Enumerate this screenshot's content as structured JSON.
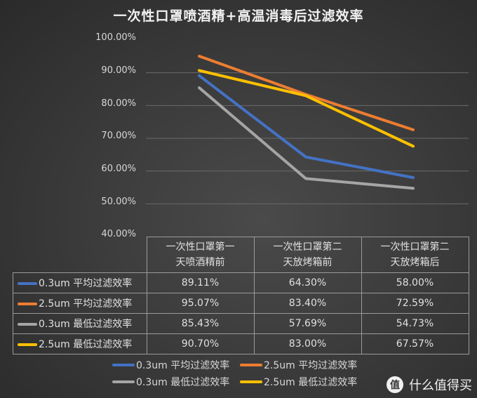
{
  "chart_data": {
    "type": "line",
    "title": "一次性口罩喷酒精+高温消毒后过滤效率",
    "xlabel": "",
    "ylabel": "",
    "ylim": [
      0.4,
      1.0
    ],
    "yticks": [
      "100.00%",
      "90.00%",
      "80.00%",
      "70.00%",
      "60.00%",
      "50.00%",
      "40.00%"
    ],
    "grid": true,
    "legend_position": "bottom",
    "categories": [
      "一次性口罩第一天喷酒精前",
      "一次性口罩第二天放烤箱前",
      "一次性口罩第二天放烤箱后"
    ],
    "category_lines": [
      [
        "一次性口罩第一",
        "天喷酒精前"
      ],
      [
        "一次性口罩第二",
        "天放烤箱前"
      ],
      [
        "一次性口罩第二",
        "天放烤箱后"
      ]
    ],
    "series": [
      {
        "name": "0.3um 平均过滤效率",
        "color": "#4472c4",
        "values": [
          89.11,
          64.3,
          58.0
        ],
        "labels": [
          "89.11%",
          "64.30%",
          "58.00%"
        ]
      },
      {
        "name": "2.5um 平均过滤效率",
        "color": "#ed7d31",
        "values": [
          95.07,
          83.4,
          72.59
        ],
        "labels": [
          "95.07%",
          "83.40%",
          "72.59%"
        ]
      },
      {
        "name": "0.3um 最低过滤效率",
        "color": "#a5a5a5",
        "values": [
          85.43,
          57.69,
          54.73
        ],
        "labels": [
          "85.43%",
          "57.69%",
          "54.73%"
        ]
      },
      {
        "name": "2.5um 最低过滤效率",
        "color": "#ffc000",
        "values": [
          90.7,
          83.0,
          67.57
        ],
        "labels": [
          "90.70%",
          "83.00%",
          "67.57%"
        ]
      }
    ]
  },
  "watermark": {
    "badge": "值",
    "text": "什么值得买"
  }
}
